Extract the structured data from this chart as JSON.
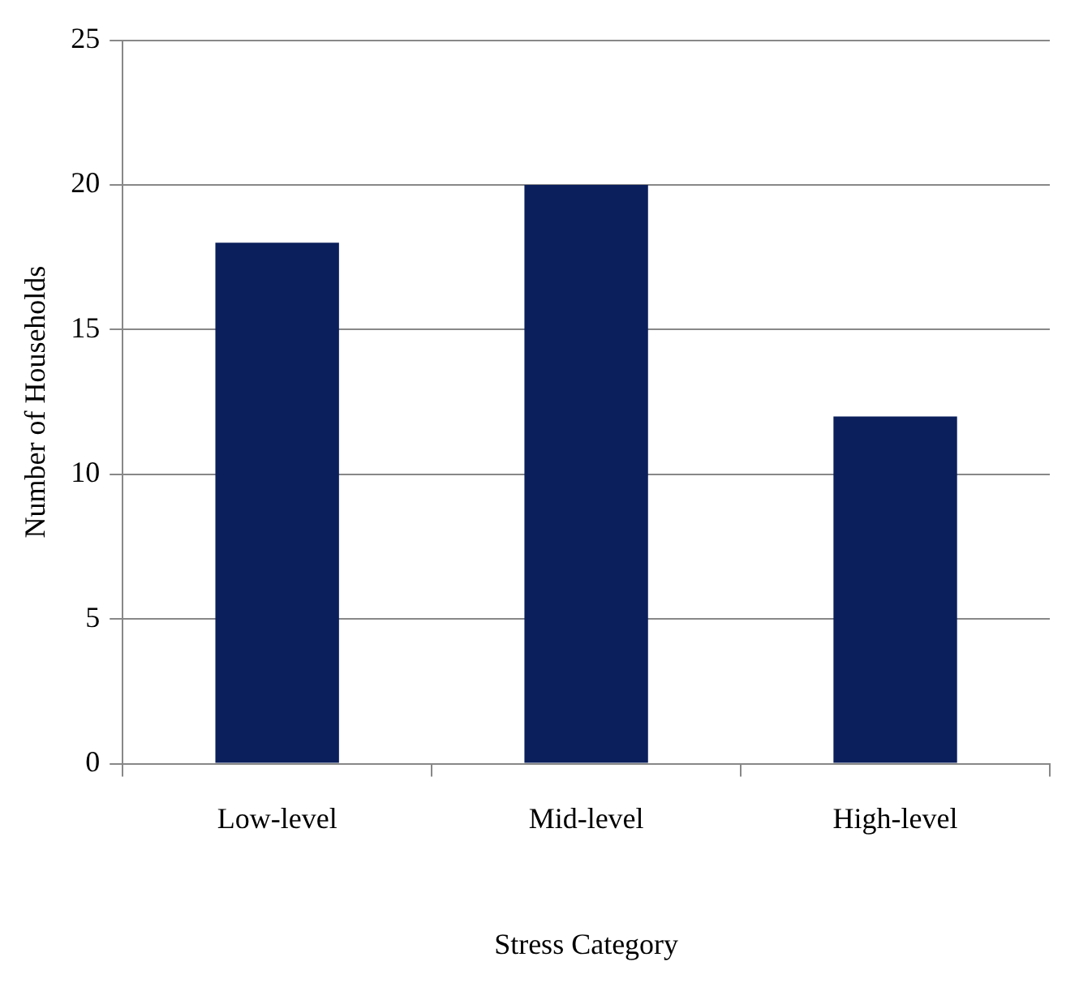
{
  "chart_data": {
    "type": "bar",
    "xlabel": "Stress Category",
    "ylabel": "Number of Households",
    "categories": [
      "Low-level",
      "Mid-level",
      "High-level"
    ],
    "values": [
      18,
      20,
      12
    ],
    "color": "#0b1f5c",
    "ylim": [
      0,
      25
    ],
    "yticks": [
      0,
      5,
      10,
      15,
      20,
      25
    ],
    "grid": "y"
  }
}
